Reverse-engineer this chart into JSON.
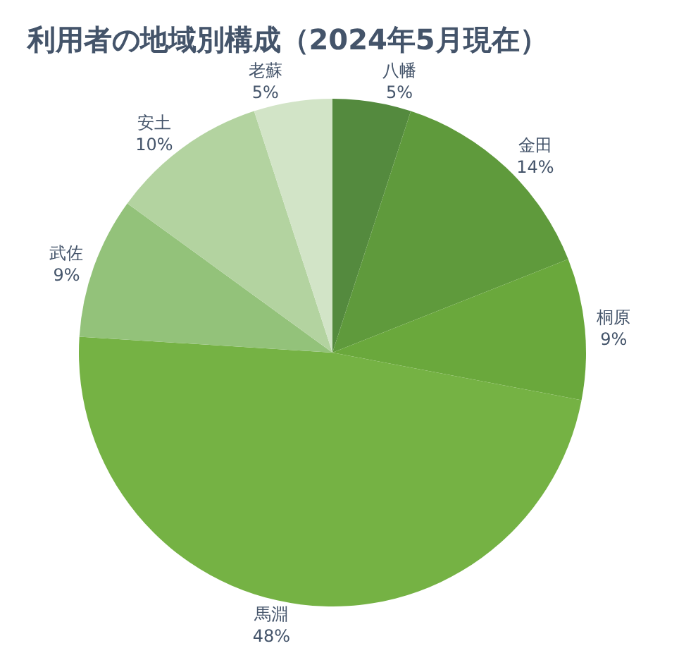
{
  "chart_data": {
    "type": "pie",
    "title": "利用者の地域別構成（2024年5月現在）",
    "categories": [
      "八幡",
      "金田",
      "桐原",
      "馬淵",
      "武佐",
      "安土",
      "老蘇"
    ],
    "values": [
      5,
      14,
      9,
      48,
      9,
      10,
      5
    ],
    "value_labels": [
      "5%",
      "14%",
      "9%",
      "48%",
      "9%",
      "10%",
      "5%"
    ],
    "colors": [
      "#548a3e",
      "#5f9a3c",
      "#6aa83c",
      "#75b244",
      "#93c27a",
      "#b3d3a0",
      "#d2e4c7"
    ],
    "legend": false
  }
}
